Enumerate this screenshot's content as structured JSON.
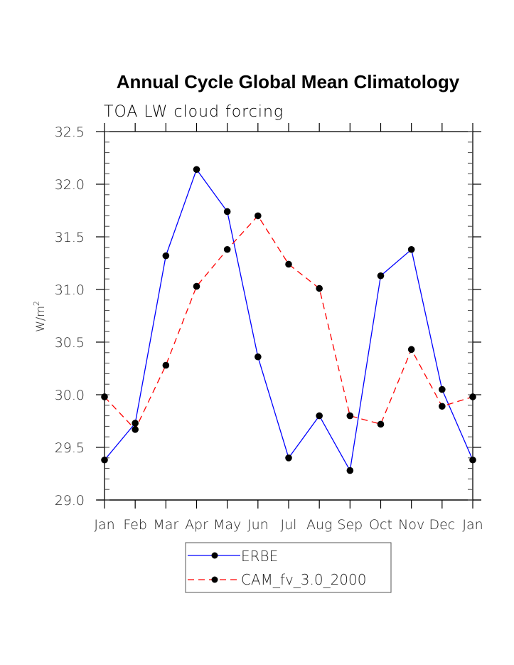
{
  "chart_data": {
    "type": "line",
    "title": "Annual Cycle Global Mean Climatology",
    "subtitle": "TOA LW cloud forcing",
    "xlabel": "",
    "ylabel": "W/m",
    "ylabel_superscript": "2",
    "x": [
      "Jan",
      "Feb",
      "Mar",
      "Apr",
      "May",
      "Jun",
      "Jul",
      "Aug",
      "Sep",
      "Oct",
      "Nov",
      "Dec",
      "Jan"
    ],
    "ylim": [
      29.0,
      32.5
    ],
    "yticks": [
      "29.0",
      "29.5",
      "30.0",
      "30.5",
      "31.0",
      "31.5",
      "32.0",
      "32.5"
    ],
    "ytick_values": [
      29.0,
      29.5,
      30.0,
      30.5,
      31.0,
      31.5,
      32.0,
      32.5
    ],
    "y_minor_step": 0.1,
    "grid": false,
    "legend_position": "bottom-center",
    "series": [
      {
        "name": "ERBE",
        "color": "#0000ff",
        "dash": "solid",
        "marker": "filled-circle",
        "values": [
          29.38,
          29.73,
          31.32,
          32.14,
          31.74,
          30.36,
          29.4,
          29.8,
          29.28,
          31.13,
          31.38,
          30.05,
          29.38
        ]
      },
      {
        "name": "CAM_fv_3.0_2000",
        "color": "#ff0000",
        "dash": "dashed",
        "marker": "filled-circle",
        "values": [
          29.98,
          29.67,
          30.28,
          31.03,
          31.38,
          31.7,
          31.24,
          31.01,
          29.8,
          29.72,
          30.43,
          29.89,
          29.98
        ]
      }
    ]
  }
}
